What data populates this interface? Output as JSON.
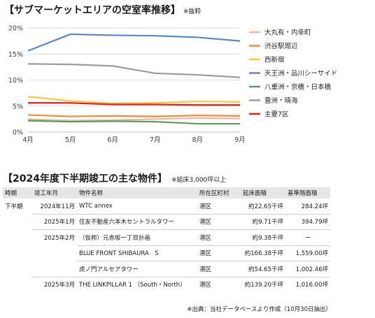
{
  "chart_title": "【サブマーケットエリアの空室率推移】",
  "chart_note": "※抜粋",
  "chart_data": {
    "type": "line",
    "categories": [
      "4月",
      "5月",
      "6月",
      "7月",
      "8月",
      "9月"
    ],
    "yticks": [
      "0%",
      "5%",
      "10%",
      "15%",
      "20%"
    ],
    "ylim": [
      0,
      20
    ],
    "grid": true,
    "legend_position": "right",
    "series": [
      {
        "name": "大丸有・内幸町",
        "color": "#f4b6a4",
        "values": [
          2.5,
          2.2,
          2.3,
          2.5,
          2.7,
          2.6
        ]
      },
      {
        "name": "渋谷駅周辺",
        "color": "#f08a3c",
        "values": [
          3.3,
          3.0,
          3.1,
          3.0,
          3.2,
          3.1
        ]
      },
      {
        "name": "西新宿",
        "color": "#f5c93a",
        "values": [
          6.8,
          6.0,
          5.5,
          5.6,
          5.9,
          5.8
        ]
      },
      {
        "name": "天王洲・品川シーサイド",
        "color": "#5b87c4",
        "values": [
          15.6,
          18.8,
          18.6,
          18.5,
          18.2,
          17.5
        ]
      },
      {
        "name": "八重洲・京橋・日本橋",
        "color": "#5aa05a",
        "values": [
          2.2,
          2.0,
          2.1,
          2.0,
          1.6,
          1.6
        ]
      },
      {
        "name": "豊洲・晴海",
        "color": "#9c9c9c",
        "values": [
          13.1,
          13.0,
          12.7,
          11.3,
          11.0,
          10.5
        ]
      },
      {
        "name": "主要7区",
        "color": "#e61e1e",
        "values": [
          5.6,
          5.6,
          5.3,
          5.3,
          5.2,
          5.2
        ]
      }
    ]
  },
  "table_title": "【2024年度下半期竣工の主な物件】",
  "table_note": "※延床3,000坪以上",
  "table": {
    "headers": [
      "時期",
      "竣工年月",
      "物件名称",
      "所在区町村",
      "延床面積",
      "基準階面積"
    ],
    "rows": [
      {
        "period": "下半期",
        "month": "2024年11月",
        "name": "WTC annex",
        "ward": "港区",
        "floor_area": "約22.65千坪",
        "std_area": "284.24坪"
      },
      {
        "period": "",
        "month": "2025年1月",
        "name": "住友不動産六本木セントラルタワー",
        "ward": "港区",
        "floor_area": "約9.71千坪",
        "std_area": "394.79坪"
      },
      {
        "period": "",
        "month": "2025年2月",
        "name": "（仮称）元赤坂一丁目計画",
        "ward": "港区",
        "floor_area": "約9.38千坪",
        "std_area": "ー"
      },
      {
        "period": "",
        "month": "",
        "name": "BLUE FRONT SHIBAURA　S",
        "ward": "港区",
        "floor_area": "約166.38千坪",
        "std_area": "1,559.00坪"
      },
      {
        "period": "",
        "month": "",
        "name": "虎ノ門アルセアタワー",
        "ward": "港区",
        "floor_area": "約54.65千坪",
        "std_area": "1,002.46坪"
      },
      {
        "period": "",
        "month": "2025年3月",
        "name": "THE LINKPILLAR 1 （South・North）",
        "ward": "港区",
        "floor_area": "約139.20千坪",
        "std_area": "1,016.00坪"
      }
    ]
  },
  "footer": "※出典：当社データベースより作成（10月30日抽出）"
}
